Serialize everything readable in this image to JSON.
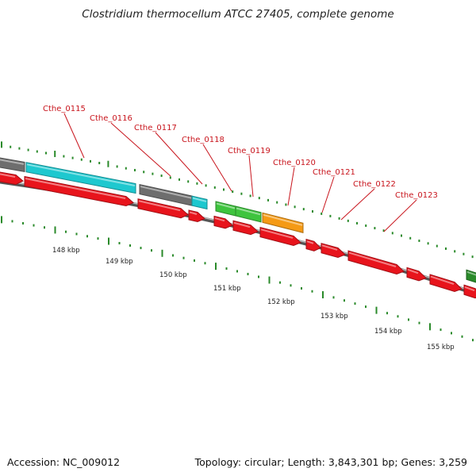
{
  "title": "Clostridium thermocellum ATCC 27405, complete genome",
  "footer": {
    "accession": "Accession: NC_009012",
    "summary": "Topology: circular; Length: 3,843,301 bp; Genes: 3,259"
  },
  "colors": {
    "forward_gene_gray": "#6e6e6e",
    "forward_gene_cyan": "#1ec8cf",
    "forward_gene_green": "#3ec43e",
    "forward_gene_orange": "#f59a15",
    "forward_gene_darkgreen": "#2a8a2a",
    "reverse_gene": "#e8141c",
    "label": "#c8141c",
    "tick": "#2a8a2a",
    "backbone": "#808080"
  },
  "gene_labels": [
    {
      "name": "Cthe_0115"
    },
    {
      "name": "Cthe_0116"
    },
    {
      "name": "Cthe_0117"
    },
    {
      "name": "Cthe_0118"
    },
    {
      "name": "Cthe_0119"
    },
    {
      "name": "Cthe_0120"
    },
    {
      "name": "Cthe_0121"
    },
    {
      "name": "Cthe_0122"
    },
    {
      "name": "Cthe_0123"
    }
  ],
  "scale_labels": [
    "148 kbp",
    "149 kbp",
    "150 kbp",
    "151 kbp",
    "152 kbp",
    "153 kbp",
    "154 kbp",
    "155 kbp"
  ]
}
